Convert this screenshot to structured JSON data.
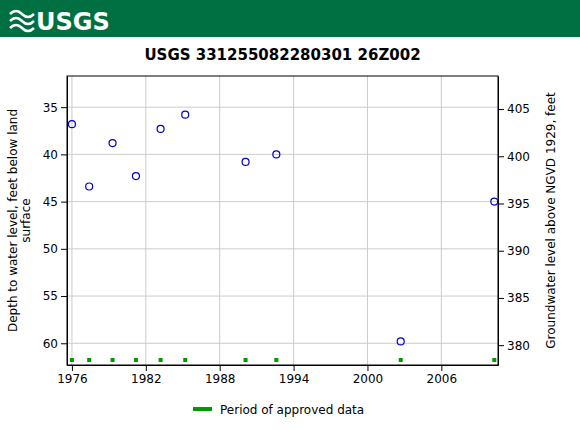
{
  "chart_data": {
    "type": "scatter",
    "header": "USGS",
    "title": "USGS 331255082280301 26Z002",
    "y_label": [
      "Depth to water level, feet below land",
      "surface"
    ],
    "y2_label": "Groundwater level above NGVD 1929, feet",
    "xlim": [
      1975.6,
      2010.6
    ],
    "xticks": [
      1976,
      1982,
      1988,
      1994,
      2000,
      2006
    ],
    "ylim": [
      31.7,
      62.3
    ],
    "yticks": [
      35,
      40,
      45,
      50,
      55,
      60
    ],
    "y2lim": [
      408.5,
      377.9
    ],
    "y2ticks": [
      380,
      385,
      390,
      395,
      400,
      405
    ],
    "grid": true,
    "series": [
      {
        "color": "#0000cc",
        "marker": "circle",
        "x": [
          1976.0,
          1977.4,
          1979.3,
          1981.2,
          1983.2,
          1985.2,
          1990.1,
          1992.6,
          2002.7,
          2010.3
        ],
        "values": [
          36.8,
          43.4,
          38.8,
          42.3,
          37.3,
          35.8,
          40.8,
          40.0,
          59.8,
          45.0
        ]
      }
    ],
    "approved_periods": {
      "name": "Period of approved data",
      "color": "#009900",
      "marker": "square",
      "x": [
        1976.0,
        1977.4,
        1979.3,
        1981.2,
        1983.2,
        1985.2,
        1990.1,
        1992.6,
        2002.7,
        2010.3
      ]
    }
  }
}
